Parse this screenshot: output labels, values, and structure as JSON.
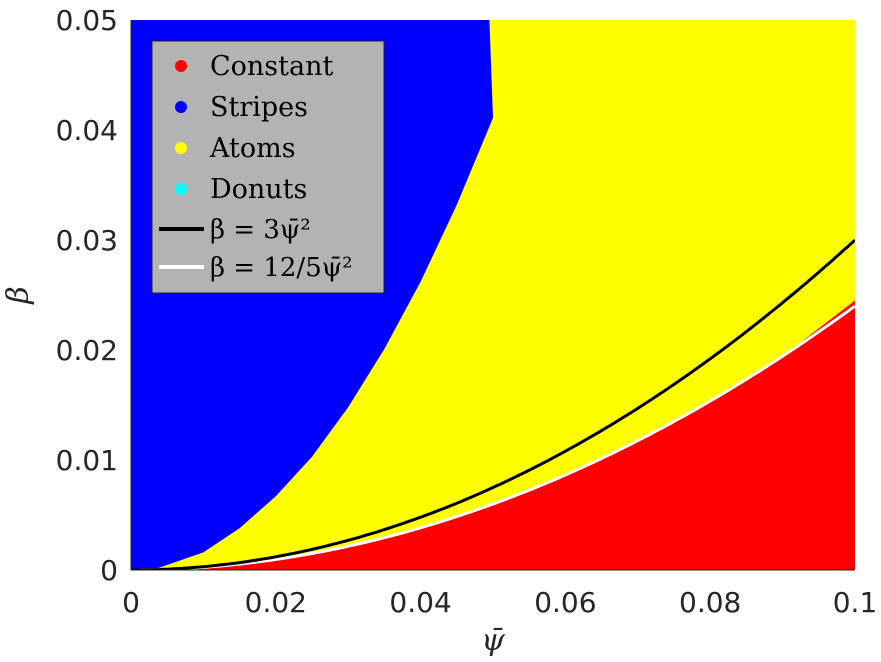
{
  "chart_data": {
    "type": "area",
    "xlabel": "ψ̄",
    "ylabel": "β",
    "xlim": [
      0,
      0.1
    ],
    "ylim": [
      0,
      0.05
    ],
    "x_ticks": [
      "0",
      "0.02",
      "0.04",
      "0.06",
      "0.08",
      "0.1"
    ],
    "y_ticks": [
      "0",
      "0.01",
      "0.02",
      "0.03",
      "0.04",
      "0.05"
    ],
    "regions": [
      {
        "name": "Constant",
        "color": "#ff0000",
        "description": "below lower boundary"
      },
      {
        "name": "Stripes",
        "color": "#0000ff",
        "description": "above upper boundary"
      },
      {
        "name": "Atoms",
        "color": "#ffff00",
        "description": "between boundaries"
      },
      {
        "name": "Donuts",
        "color": "#00ffff",
        "description": "not present in plotted range"
      }
    ],
    "boundary_upper": {
      "x": [
        0,
        0.003,
        0.01,
        0.015,
        0.02,
        0.025,
        0.03,
        0.035,
        0.04,
        0.045,
        0.05
      ],
      "y": [
        0,
        0,
        0.0016,
        0.0038,
        0.0067,
        0.0103,
        0.0148,
        0.0201,
        0.0262,
        0.0332,
        0.0411
      ]
    },
    "boundary_upper_cap_x": 0.0495,
    "boundary_lower": {
      "x": [
        0.003,
        0.01,
        0.02,
        0.03,
        0.04,
        0.05,
        0.06,
        0.07,
        0.08,
        0.09,
        0.1
      ],
      "y": [
        0,
        0.00024,
        0.00096,
        0.00216,
        0.00384,
        0.006,
        0.00864,
        0.01176,
        0.01536,
        0.01944,
        0.0245
      ]
    },
    "series": [
      {
        "name": "β = 3ψ̄²",
        "color": "#000000",
        "coefficient": 3
      },
      {
        "name": "β = 12/5ψ̄²",
        "color": "#ffffff",
        "coefficient": 2.4
      }
    ]
  },
  "legend": {
    "items": [
      {
        "label": "Constant",
        "color": "#ff0000"
      },
      {
        "label": "Stripes",
        "color": "#0000ff"
      },
      {
        "label": "Atoms",
        "color": "#ffff00"
      },
      {
        "label": "Donuts",
        "color": "#00ffff"
      }
    ],
    "line1_text": "β = 3ψ̄²",
    "line2_text": "β = 12/5ψ̄²",
    "background": "#b3b3b3"
  }
}
